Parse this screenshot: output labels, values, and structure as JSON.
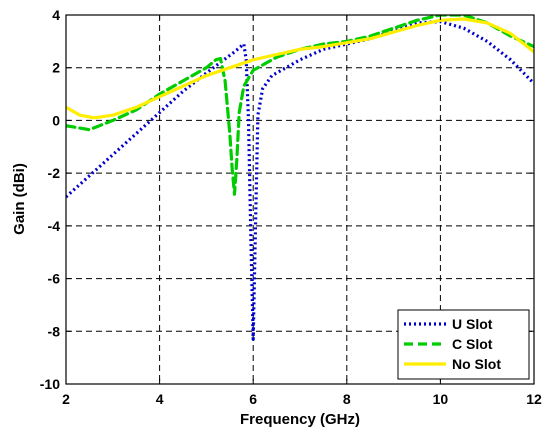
{
  "chart_data": {
    "type": "line",
    "title": "",
    "xlabel": "Frequency (GHz)",
    "ylabel": "Gain (dBi)",
    "xlim": [
      2,
      12
    ],
    "ylim": [
      -10,
      4
    ],
    "xticks": [
      "2",
      "4",
      "6",
      "8",
      "10",
      "12"
    ],
    "yticks": [
      "4",
      "2",
      "0",
      "-2",
      "-4",
      "-6",
      "-8",
      "-10"
    ],
    "grid": true,
    "legend_position": "bottom-right",
    "series": [
      {
        "name": "U Slot",
        "color": "#0000CC",
        "dash": "dotted",
        "x": [
          2.0,
          2.5,
          3.0,
          3.5,
          4.0,
          4.5,
          5.0,
          5.3,
          5.6,
          5.8,
          5.85,
          5.9,
          5.95,
          6.0,
          6.05,
          6.1,
          6.2,
          6.4,
          7.0,
          7.5,
          8.0,
          8.5,
          9.0,
          9.5,
          10.0,
          10.5,
          11.0,
          11.5,
          12.0
        ],
        "y": [
          -2.9,
          -2.1,
          -1.3,
          -0.5,
          0.3,
          1.1,
          1.8,
          2.2,
          2.6,
          2.9,
          2.3,
          0.0,
          -4.5,
          -8.3,
          -4.0,
          0.2,
          1.2,
          1.7,
          2.3,
          2.7,
          2.9,
          3.1,
          3.4,
          3.7,
          3.75,
          3.5,
          3.0,
          2.3,
          1.4
        ]
      },
      {
        "name": "C Slot",
        "color": "#00CC00",
        "dash": "dashed",
        "x": [
          2.0,
          2.5,
          3.0,
          3.5,
          4.0,
          4.5,
          5.0,
          5.2,
          5.3,
          5.4,
          5.5,
          5.55,
          5.6,
          5.65,
          5.7,
          5.8,
          6.0,
          6.5,
          7.0,
          7.5,
          8.0,
          8.5,
          9.0,
          9.5,
          10.0,
          10.5,
          11.0,
          11.5,
          12.0
        ],
        "y": [
          -0.2,
          -0.35,
          0.0,
          0.4,
          1.0,
          1.5,
          2.0,
          2.3,
          2.35,
          1.5,
          -0.5,
          -1.8,
          -2.8,
          -1.5,
          0.3,
          1.3,
          1.9,
          2.4,
          2.7,
          2.9,
          3.0,
          3.2,
          3.5,
          3.8,
          4.0,
          4.0,
          3.7,
          3.2,
          2.8
        ]
      },
      {
        "name": "No Slot",
        "color": "#FFEE00",
        "dash": "solid",
        "x": [
          2.0,
          2.3,
          2.6,
          3.0,
          3.5,
          4.0,
          4.5,
          5.0,
          5.5,
          6.0,
          6.5,
          7.0,
          7.5,
          8.0,
          8.5,
          9.0,
          9.5,
          10.0,
          10.5,
          11.0,
          11.5,
          12.0
        ],
        "y": [
          0.5,
          0.2,
          0.1,
          0.2,
          0.5,
          0.9,
          1.3,
          1.7,
          2.0,
          2.3,
          2.5,
          2.7,
          2.8,
          2.95,
          3.1,
          3.35,
          3.6,
          3.8,
          3.85,
          3.7,
          3.3,
          2.6
        ]
      }
    ]
  }
}
